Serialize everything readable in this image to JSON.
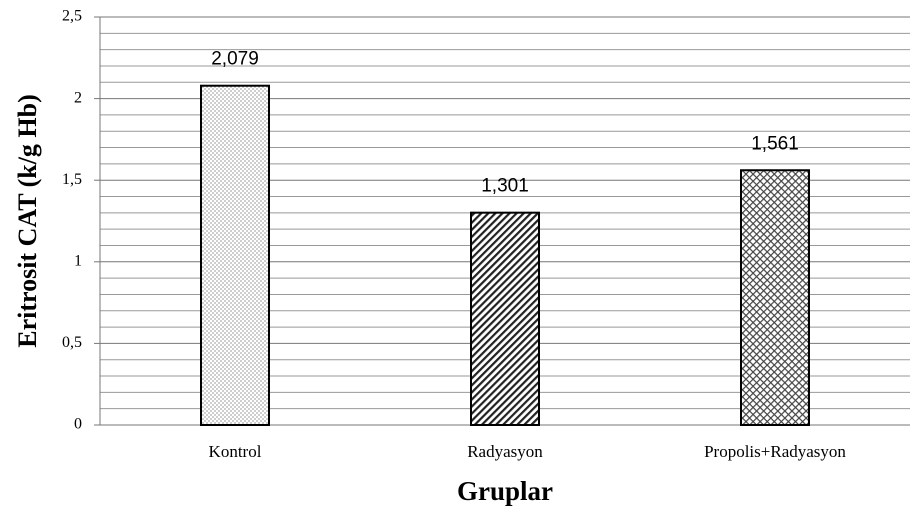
{
  "chart_data": {
    "type": "bar",
    "xlabel": "Gruplar",
    "ylabel": "Eritrosit CAT  (k/g Hb)",
    "categories": [
      "Kontrol",
      "Radyasyon",
      "Propolis+Radyasyon"
    ],
    "values": [
      2.079,
      1.301,
      1.561
    ],
    "value_labels": [
      "2,079",
      "1,301",
      "1,561"
    ],
    "patterns": [
      "dots",
      "hatch",
      "crosshatch"
    ],
    "color": "#000000",
    "ylim": [
      0,
      2.5
    ],
    "yticks": [
      0,
      {
        "value": 0.5,
        "label": "0,5"
      },
      1,
      {
        "value": 1.5,
        "label": "1,5"
      },
      2,
      {
        "value": 2.5,
        "label": "2,5"
      }
    ],
    "grid": true
  }
}
